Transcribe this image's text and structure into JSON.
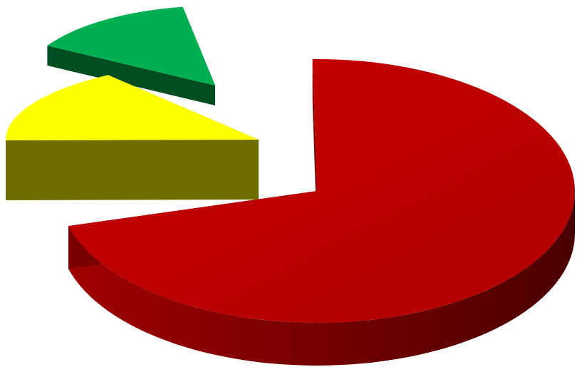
{
  "chart_data": {
    "type": "pie",
    "style": "3d-exploded",
    "title": "",
    "categories": [
      "",
      "",
      ""
    ],
    "values": [
      71,
      15,
      14
    ],
    "colors": [
      "#bd0000",
      "#ffff00",
      "#00b050"
    ],
    "side_colors": [
      "#7a0000",
      "#6f6f00",
      "#004d22"
    ],
    "exploded": [
      true,
      true,
      true
    ],
    "legend": "none",
    "data_labels": false
  }
}
